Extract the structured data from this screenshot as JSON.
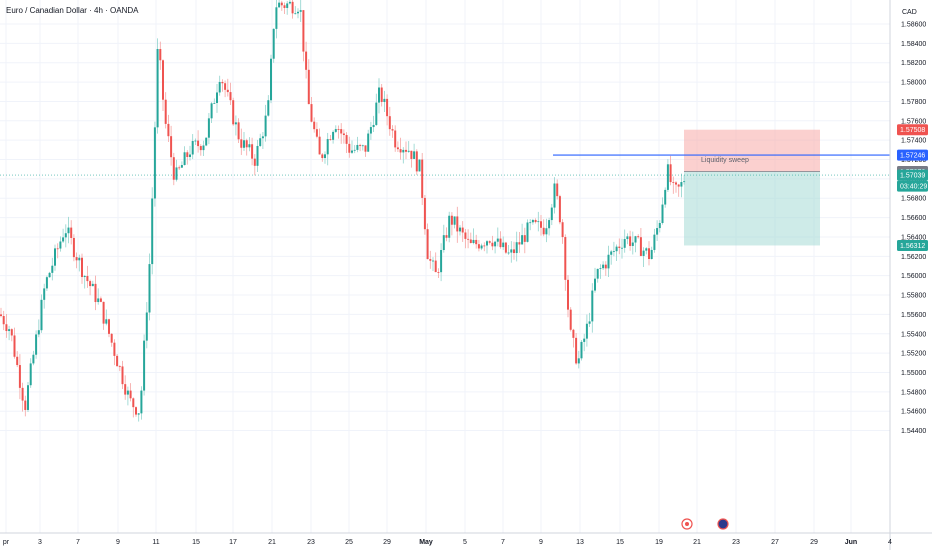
{
  "title": "Euro / Canadian Dollar · 4h · OANDA",
  "currency": "CAD",
  "colors": {
    "up": "#26a69a",
    "down": "#ef5350",
    "grid": "#f0f3fa",
    "blue_line": "#2962ff",
    "stop_zone": "#f7a9a8",
    "target_zone": "#a5dbd6"
  },
  "chart_data": {
    "type": "candlestick",
    "title": "Euro / Canadian Dollar · 4h · OANDA",
    "ylim": [
      1.5434,
      1.5875
    ],
    "y_ticks": [
      "1.58600",
      "1.58400",
      "1.58200",
      "1.58000",
      "1.57800",
      "1.57600",
      "1.57400",
      "1.57200",
      "1.57000",
      "1.56800",
      "1.56600",
      "1.56400",
      "1.56200",
      "1.56000",
      "1.55800",
      "1.55600",
      "1.55400",
      "1.55200",
      "1.55000",
      "1.54800",
      "1.54600",
      "1.54400"
    ],
    "x_ticks": [
      "pr",
      "3",
      "7",
      "9",
      "11",
      "15",
      "17",
      "21",
      "23",
      "25",
      "29",
      "May",
      "5",
      "7",
      "9",
      "13",
      "15",
      "19",
      "21",
      "23",
      "27",
      "29",
      "Jun",
      "4"
    ],
    "price_badges": [
      {
        "label": "1.57508",
        "value": 1.57508,
        "color": "#ef5350"
      },
      {
        "label": "1.57246",
        "value": 1.57246,
        "color": "#2962ff"
      },
      {
        "label": "1.57076",
        "value": 1.57076,
        "color": "#787b86"
      },
      {
        "label": "1.57039",
        "value": 1.57039,
        "color": "#26a69a"
      },
      {
        "label": "03:40:29",
        "value": 1.56925,
        "color": "#26a69a"
      },
      {
        "label": "1.56312",
        "value": 1.56312,
        "color": "#26a69a"
      }
    ],
    "annotations": [
      {
        "text": "Liquidity sweep",
        "type": "horizontal-line",
        "value": 1.57246
      }
    ],
    "position": {
      "type": "short",
      "entry": 1.57076,
      "stop": 1.57508,
      "target": 1.56312
    },
    "current_price": 1.57039
  }
}
